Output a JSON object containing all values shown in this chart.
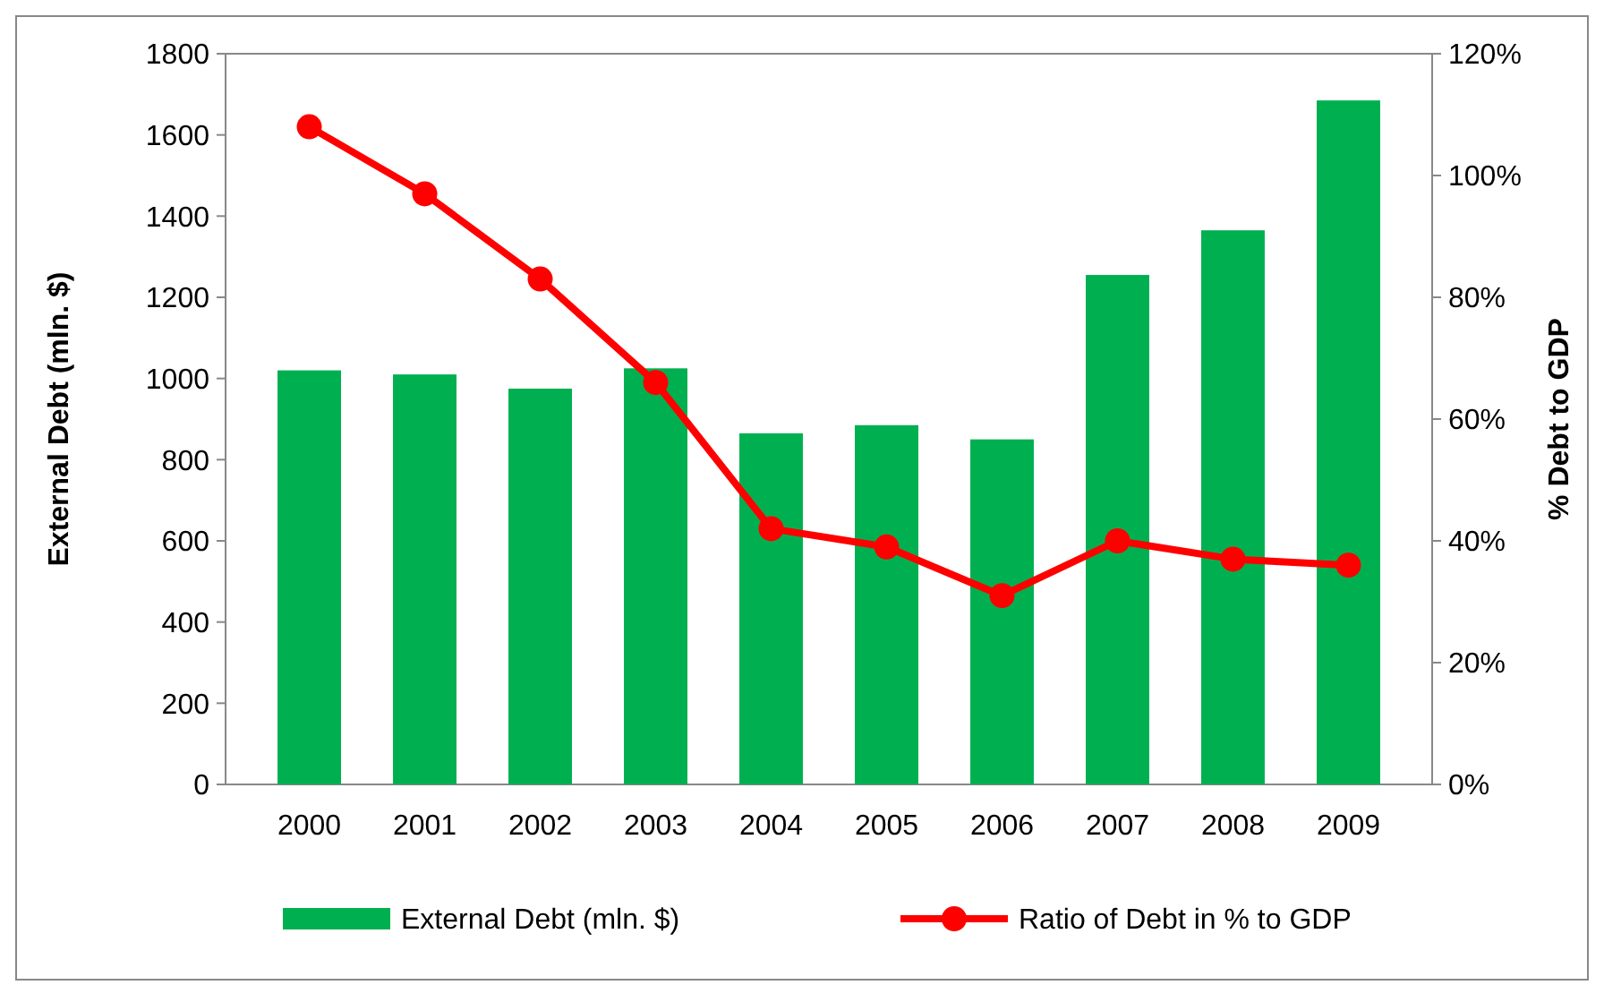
{
  "chart_data": {
    "type": "bar",
    "categories": [
      "2000",
      "2001",
      "2002",
      "2003",
      "2004",
      "2005",
      "2006",
      "2007",
      "2008",
      "2009"
    ],
    "ylabel": "External Debt (mln. $)",
    "y2label": "% Debt to GDP",
    "series": [
      {
        "name": "External Debt (mln. $)",
        "color": "#00b050",
        "values": [
          1020,
          1010,
          975,
          1025,
          865,
          885,
          850,
          1255,
          1365,
          1685
        ]
      },
      {
        "name": "Ratio of Debt in % to GDP",
        "type": "line",
        "axis": "y2",
        "color": "#ff0000",
        "marker": "circle",
        "values": [
          108,
          97,
          83,
          66,
          42,
          39,
          31,
          40,
          37,
          36
        ]
      }
    ],
    "ylim": [
      0,
      1800
    ],
    "yticks": [
      0,
      200,
      400,
      600,
      800,
      1000,
      1200,
      1400,
      1600,
      1800
    ],
    "y2lim": [
      0,
      120
    ],
    "y2ticks": [
      {
        "value": 0,
        "label": "0%"
      },
      {
        "value": 20,
        "label": "20%"
      },
      {
        "value": 40,
        "label": "40%"
      },
      {
        "value": 60,
        "label": "60%"
      },
      {
        "value": 80,
        "label": "80%"
      },
      {
        "value": 100,
        "label": "100%"
      },
      {
        "value": 120,
        "label": "120%"
      }
    ],
    "grid": false,
    "legend": "bottom"
  }
}
